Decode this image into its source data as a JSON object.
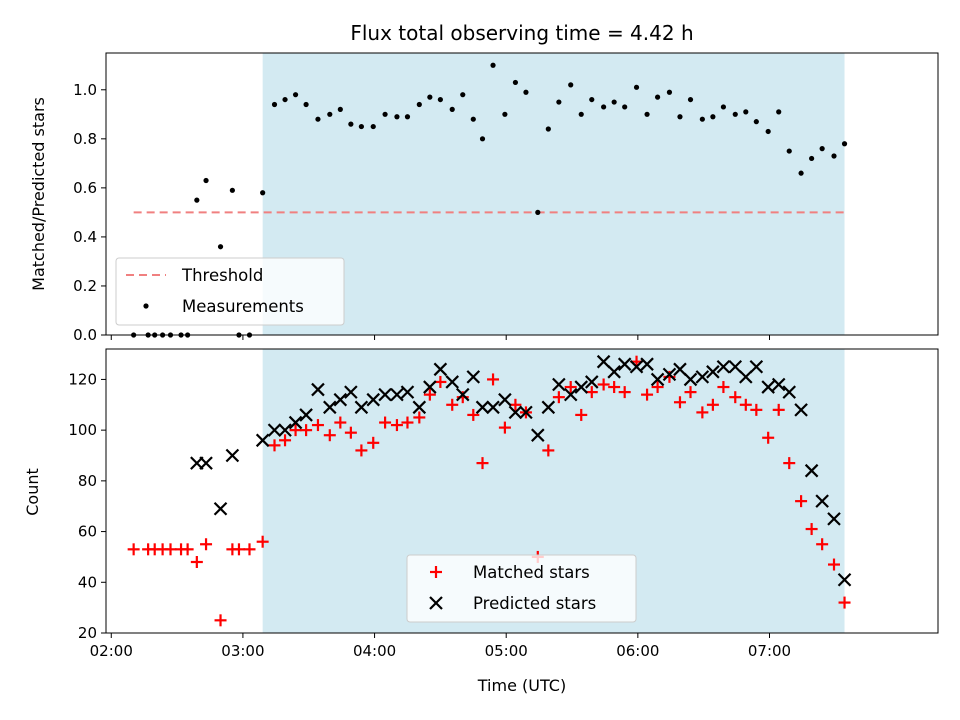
{
  "chart_data": {
    "title": "Flux total observing time = 4.42 h",
    "xlabel": "Time (UTC)",
    "x_range_hours": [
      1.96,
      8.28
    ],
    "x_ticks": [
      {
        "v": 2,
        "label": "02:00"
      },
      {
        "v": 3,
        "label": "03:00"
      },
      {
        "v": 4,
        "label": "04:00"
      },
      {
        "v": 5,
        "label": "05:00"
      },
      {
        "v": 6,
        "label": "06:00"
      },
      {
        "v": 7,
        "label": "07:00"
      }
    ],
    "shaded_interval_hours": [
      3.15,
      7.57
    ],
    "shade_color": "#d3eaf2",
    "top": {
      "type": "scatter",
      "ylabel": "Matched/Predicted stars",
      "ylim": [
        0,
        1.15
      ],
      "y_ticks": [
        {
          "v": 0.0,
          "label": "0.0"
        },
        {
          "v": 0.2,
          "label": "0.2"
        },
        {
          "v": 0.4,
          "label": "0.4"
        },
        {
          "v": 0.6,
          "label": "0.6"
        },
        {
          "v": 0.8,
          "label": "0.8"
        },
        {
          "v": 1.0,
          "label": "1.0"
        }
      ],
      "threshold": {
        "name": "Threshold",
        "y": 0.5,
        "x_range": [
          2.17,
          7.57
        ],
        "color": "#f08080"
      },
      "measurements": {
        "name": "Measurements",
        "color": "#000000",
        "x": [
          2.17,
          2.28,
          2.33,
          2.39,
          2.45,
          2.53,
          2.58,
          2.65,
          2.72,
          2.83,
          2.92,
          2.97,
          3.05,
          3.15,
          3.24,
          3.32,
          3.4,
          3.48,
          3.57,
          3.66,
          3.74,
          3.82,
          3.9,
          3.99,
          4.08,
          4.17,
          4.25,
          4.34,
          4.42,
          4.5,
          4.59,
          4.67,
          4.75,
          4.82,
          4.9,
          4.99,
          5.07,
          5.15,
          5.24,
          5.32,
          5.4,
          5.49,
          5.57,
          5.65,
          5.74,
          5.82,
          5.9,
          5.99,
          6.07,
          6.15,
          6.24,
          6.32,
          6.4,
          6.49,
          6.57,
          6.65,
          6.74,
          6.82,
          6.9,
          6.99,
          7.07,
          7.15,
          7.24,
          7.32,
          7.4,
          7.49,
          7.57
        ],
        "y": [
          0,
          0,
          0,
          0,
          0,
          0,
          0,
          0.55,
          0.63,
          0.36,
          0.59,
          0,
          0,
          0.58,
          0.94,
          0.96,
          0.98,
          0.94,
          0.88,
          0.9,
          0.92,
          0.86,
          0.85,
          0.85,
          0.9,
          0.89,
          0.89,
          0.94,
          0.97,
          0.96,
          0.92,
          0.98,
          0.88,
          0.8,
          1.1,
          0.9,
          1.03,
          0.99,
          0.5,
          0.84,
          0.95,
          1.02,
          0.9,
          0.96,
          0.93,
          0.95,
          0.93,
          1.01,
          0.9,
          0.97,
          0.99,
          0.89,
          0.96,
          0.88,
          0.89,
          0.93,
          0.9,
          0.91,
          0.87,
          0.83,
          0.91,
          0.75,
          0.66,
          0.72,
          0.76,
          0.73,
          0.78
        ]
      },
      "legend": {
        "placement": "lower-left",
        "entries": [
          "Threshold",
          "Measurements"
        ]
      }
    },
    "bottom": {
      "type": "scatter",
      "ylabel": "Count",
      "ylim": [
        20,
        132
      ],
      "y_ticks": [
        {
          "v": 20,
          "label": "20"
        },
        {
          "v": 40,
          "label": "40"
        },
        {
          "v": 60,
          "label": "60"
        },
        {
          "v": 80,
          "label": "80"
        },
        {
          "v": 100,
          "label": "100"
        },
        {
          "v": 120,
          "label": "120"
        }
      ],
      "series": [
        {
          "name": "Matched stars",
          "marker": "plus",
          "color": "#ff0000",
          "x": [
            2.17,
            2.28,
            2.33,
            2.39,
            2.45,
            2.53,
            2.58,
            2.65,
            2.72,
            2.83,
            2.92,
            2.97,
            3.05,
            3.15,
            3.24,
            3.32,
            3.4,
            3.48,
            3.57,
            3.66,
            3.74,
            3.82,
            3.9,
            3.99,
            4.08,
            4.17,
            4.25,
            4.34,
            4.42,
            4.5,
            4.59,
            4.67,
            4.75,
            4.82,
            4.9,
            4.99,
            5.07,
            5.15,
            5.24,
            5.32,
            5.4,
            5.49,
            5.57,
            5.65,
            5.74,
            5.82,
            5.9,
            5.99,
            6.07,
            6.15,
            6.24,
            6.32,
            6.4,
            6.49,
            6.57,
            6.65,
            6.74,
            6.82,
            6.9,
            6.99,
            7.07,
            7.15,
            7.24,
            7.32,
            7.4,
            7.49,
            7.57
          ],
          "y": [
            53,
            53,
            53,
            53,
            53,
            53,
            53,
            48,
            55,
            25,
            53,
            53,
            53,
            56,
            94,
            96,
            100,
            100,
            102,
            98,
            103,
            99,
            92,
            95,
            103,
            102,
            103,
            105,
            114,
            119,
            110,
            113,
            106,
            87,
            120,
            101,
            110,
            107,
            50,
            92,
            113,
            117,
            106,
            115,
            118,
            117,
            115,
            127,
            114,
            117,
            121,
            111,
            115,
            107,
            110,
            117,
            113,
            110,
            108,
            97,
            108,
            87,
            72,
            61,
            55,
            47,
            32
          ]
        },
        {
          "name": "Predicted stars",
          "marker": "x",
          "color": "#000000",
          "x": [
            2.65,
            2.72,
            2.83,
            2.92,
            3.15,
            3.24,
            3.32,
            3.4,
            3.48,
            3.57,
            3.66,
            3.74,
            3.82,
            3.9,
            3.99,
            4.08,
            4.17,
            4.25,
            4.34,
            4.42,
            4.5,
            4.59,
            4.67,
            4.75,
            4.82,
            4.9,
            4.99,
            5.07,
            5.15,
            5.24,
            5.32,
            5.4,
            5.49,
            5.57,
            5.65,
            5.74,
            5.82,
            5.9,
            5.99,
            6.07,
            6.15,
            6.24,
            6.32,
            6.4,
            6.49,
            6.57,
            6.65,
            6.74,
            6.82,
            6.9,
            6.99,
            7.07,
            7.15,
            7.24,
            7.32,
            7.4,
            7.49,
            7.57
          ],
          "y": [
            87,
            87,
            69,
            90,
            96,
            100,
            100,
            103,
            106,
            116,
            109,
            112,
            115,
            109,
            112,
            114,
            114,
            115,
            109,
            117,
            124,
            119,
            114,
            121,
            109,
            109,
            112,
            107,
            107,
            98,
            109,
            118,
            114,
            117,
            119,
            127,
            123,
            126,
            125,
            126,
            120,
            122,
            124,
            120,
            121,
            123,
            125,
            125,
            121,
            125,
            117,
            118,
            115,
            108,
            84,
            72,
            65,
            41
          ]
        }
      ],
      "legend": {
        "placement": "lower-center",
        "entries": [
          "Matched stars",
          "Predicted stars"
        ]
      }
    }
  }
}
